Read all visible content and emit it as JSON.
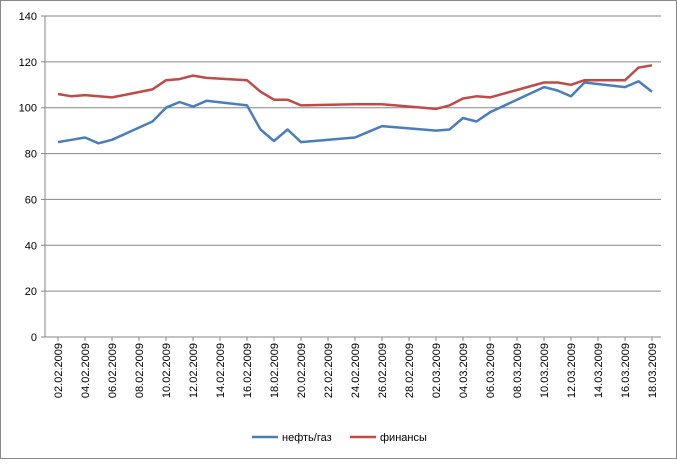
{
  "chart_data": {
    "type": "line",
    "x": [
      "02.02.2009",
      "03.02.2009",
      "04.02.2009",
      "05.02.2009",
      "06.02.2009",
      "09.02.2009",
      "10.02.2009",
      "11.02.2009",
      "12.02.2009",
      "13.02.2009",
      "16.02.2009",
      "17.02.2009",
      "18.02.2009",
      "19.02.2009",
      "20.02.2009",
      "24.02.2009",
      "25.02.2009",
      "26.02.2009",
      "27.02.2009",
      "02.03.2009",
      "03.03.2009",
      "04.03.2009",
      "05.03.2009",
      "06.03.2009",
      "10.03.2009",
      "11.03.2009",
      "12.03.2009",
      "13.03.2009",
      "16.03.2009",
      "17.03.2009",
      "18.03.2009"
    ],
    "series": [
      {
        "name": "нефть/газ",
        "color": "#4a7ebb",
        "values": [
          85,
          86,
          87,
          84.5,
          86,
          94,
          100,
          102.5,
          100.5,
          103,
          101,
          90.5,
          85.5,
          90.5,
          85,
          87,
          89.5,
          92,
          91.5,
          90,
          90.5,
          95.5,
          94,
          98,
          109,
          107.5,
          105,
          111,
          109,
          111.5,
          107
        ]
      },
      {
        "name": "финансы",
        "color": "#be4b48",
        "values": [
          106,
          105,
          105.5,
          105,
          104.5,
          108,
          112,
          112.5,
          114,
          113,
          112,
          107,
          103.5,
          103.5,
          101,
          101.5,
          101.5,
          101.5,
          101,
          99.5,
          101,
          104,
          105,
          104.5,
          111,
          111,
          110,
          112,
          112,
          117.5,
          118.5
        ]
      }
    ],
    "xticks": [
      "02.02.2009",
      "04.02.2009",
      "06.02.2009",
      "08.02.2009",
      "10.02.2009",
      "12.02.2009",
      "14.02.2009",
      "16.02.2009",
      "18.02.2009",
      "20.02.2009",
      "22.02.2009",
      "24.02.2009",
      "26.02.2009",
      "28.02.2009",
      "02.03.2009",
      "04.03.2009",
      "06.03.2009",
      "08.03.2009",
      "10.03.2009",
      "12.03.2009",
      "14.03.2009",
      "16.03.2009",
      "18.03.2009"
    ],
    "ylim": [
      0,
      140
    ],
    "yticks": [
      0,
      20,
      40,
      60,
      80,
      100,
      120,
      140
    ],
    "grid": true,
    "legend": "bottom"
  }
}
